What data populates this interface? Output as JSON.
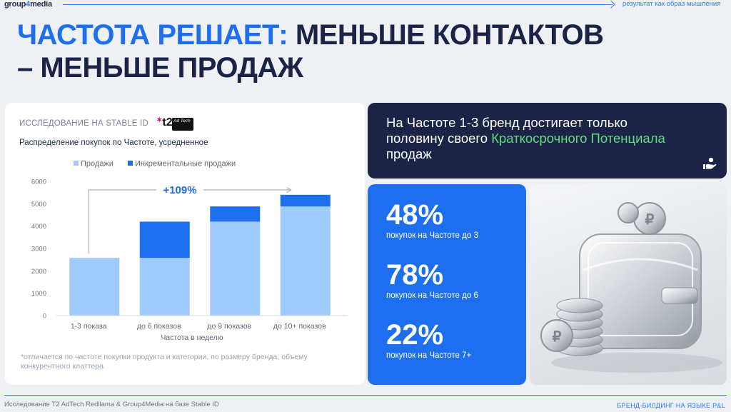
{
  "header": {
    "logo_part1": "group",
    "logo_part2": "4",
    "logo_part3": "media",
    "tagline": "результат как образ мышления"
  },
  "title": {
    "accent": "Частота решает:",
    "rest_line1": " меньше контактов",
    "line2": "– меньше продаж"
  },
  "chart_card": {
    "study_label": "ИССЛЕДОВАНИЕ НА STABLE ID",
    "t2_logo": "t2",
    "adtech_logo": "Ad Tech",
    "subtitle": "Распределение покупок по Частоте,  усредненное",
    "footnote": "*отличается по частоте покупки продукта и категории, по размеру бренда, объему конкурентного клаттера"
  },
  "chart_data": {
    "type": "bar",
    "stacked": true,
    "categories": [
      "1-3 показа",
      "до 6 показов",
      "до 9 показов",
      "до 10+ показов"
    ],
    "series": [
      {
        "name": "Продажи",
        "color": "#9fcbff",
        "values": [
          2580,
          2580,
          4200,
          4880
        ]
      },
      {
        "name": "Инкрементальные продажи",
        "color": "#1e6ff0",
        "values": [
          0,
          1620,
          680,
          520
        ]
      }
    ],
    "xlabel": "Частота в неделю",
    "ylabel": "",
    "ylim": [
      0,
      6000
    ],
    "yticks": [
      "0",
      "1000",
      "2000",
      "3000",
      "4000",
      "5000",
      "6000"
    ],
    "annotation": "+109%",
    "legend_position": "top-left",
    "grid": false
  },
  "dark_card": {
    "text_part1": "На Частоте 1-3 бренд достигает только половину своего ",
    "text_highlight": "Краткосрочного Потенциала",
    "text_part2": " продаж",
    "icon": "hand-coin-icon"
  },
  "stats": [
    {
      "value": "48%",
      "label": "покупок на Частоте до 3"
    },
    {
      "value": "78%",
      "label": "покупок на Частоте до 6"
    },
    {
      "value": "22%",
      "label": "покупок на Частоте 7+"
    }
  ],
  "footer": {
    "source": "Исследование T2 AdTech Redllama & Group4Media на базе Stable ID",
    "brand": "БРЕНД-БИЛДИНГ НА ЯЗЫКЕ P&L"
  }
}
